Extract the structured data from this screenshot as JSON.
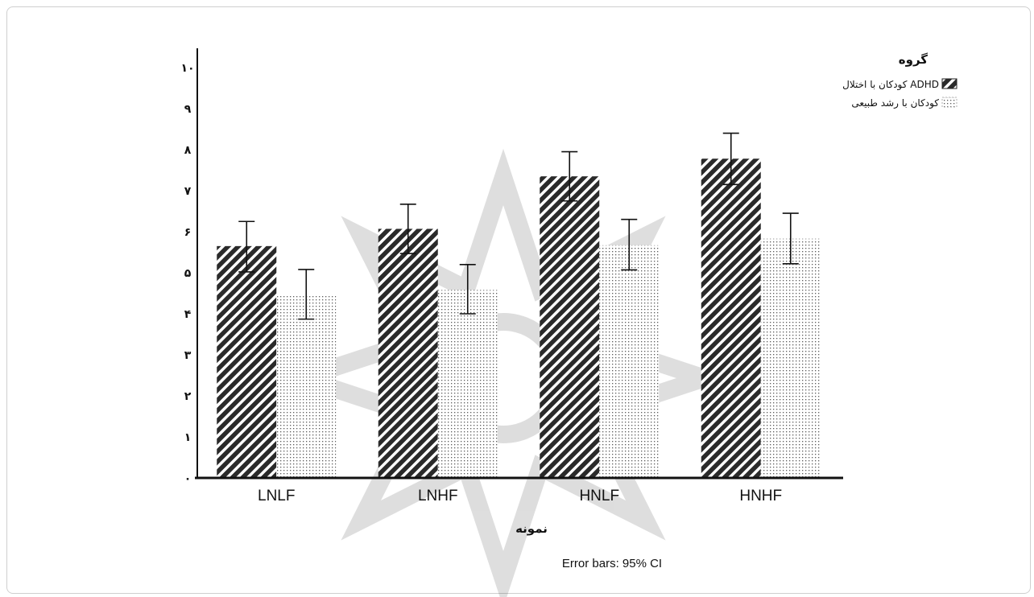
{
  "chart_data": {
    "type": "bar",
    "categories": [
      "LNLF",
      "LNHF",
      "HNLF",
      "HNHF"
    ],
    "series": [
      {
        "name": "کودکان با اختلال ADHD",
        "values": [
          5.65,
          6.07,
          7.35,
          7.78
        ],
        "ci_low": [
          5.02,
          5.47,
          6.75,
          7.15
        ],
        "ci_high": [
          6.25,
          6.67,
          7.95,
          8.4
        ],
        "pattern": "diagonal-hatch"
      },
      {
        "name": "کودکان با رشد طبیعی",
        "values": [
          4.48,
          4.58,
          5.67,
          5.83
        ],
        "ci_low": [
          3.87,
          4.0,
          5.07,
          5.22
        ],
        "ci_high": [
          5.08,
          5.2,
          6.3,
          6.45
        ],
        "pattern": "dotted"
      }
    ],
    "y_ticks": [
      "۰",
      "۱",
      "۲",
      "۳",
      "۴",
      "۵",
      "۶",
      "۷",
      "۸",
      "۹",
      "۱۰"
    ],
    "xlabel": "نمونه",
    "ylabel": "",
    "ylim": [
      0,
      10
    ],
    "legend_title": "گروه",
    "legend_position": "top-right",
    "grid": false,
    "note": "Error bars: 95% CI"
  }
}
